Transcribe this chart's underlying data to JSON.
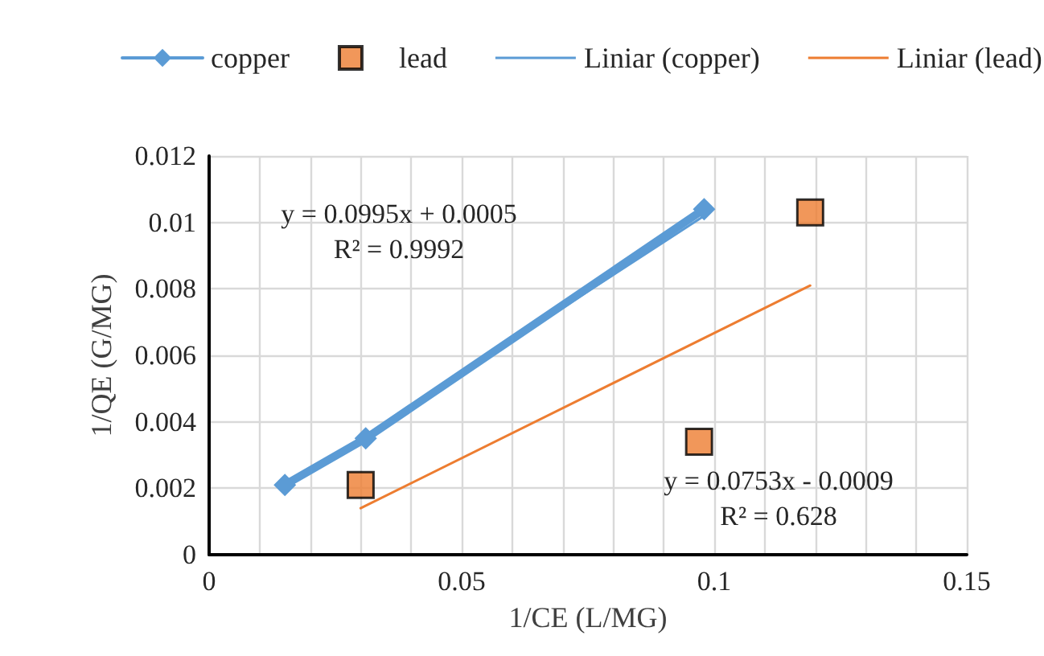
{
  "chart_data": {
    "type": "scatter",
    "xlabel": "1/CE (L/MG)",
    "ylabel": "1/QE (G/MG)",
    "xlim": [
      0,
      0.15
    ],
    "ylim": [
      0,
      0.012
    ],
    "xticks": [
      0,
      {
        "value": 0.01,
        "label": null
      },
      {
        "value": 0.02,
        "label": null
      },
      {
        "value": 0.03,
        "label": null
      },
      {
        "value": 0.04,
        "label": null
      },
      0.05,
      {
        "value": 0.06,
        "label": null
      },
      {
        "value": 0.07,
        "label": null
      },
      {
        "value": 0.08,
        "label": null
      },
      {
        "value": 0.09,
        "label": null
      },
      0.1,
      {
        "value": 0.11,
        "label": null
      },
      {
        "value": 0.12,
        "label": null
      },
      {
        "value": 0.13,
        "label": null
      },
      {
        "value": 0.14,
        "label": null
      },
      0.15
    ],
    "yticks": [
      0,
      0.002,
      0.004,
      0.006,
      0.008,
      0.01,
      0.012
    ],
    "grid": true,
    "legend": "top",
    "series": [
      {
        "name": "copper",
        "type": "line",
        "marker": "diamond",
        "line_style": "solid",
        "color": "#5b9bd5",
        "x": [
          0.015,
          0.031,
          0.098
        ],
        "values": [
          0.0021,
          0.0035,
          0.0104
        ]
      },
      {
        "name": "lead",
        "marker": "square",
        "color": "#ed7d31",
        "x": [
          0.03,
          0.097,
          0.119
        ],
        "values": [
          0.0021,
          0.0034,
          0.0103
        ]
      },
      {
        "name": "Liniar (copper)",
        "type": "line",
        "marker": "none",
        "line_style": "solid",
        "color": "#5b9bd5",
        "x": [
          0.015,
          0.098
        ],
        "values": [
          0.002,
          0.0102
        ]
      },
      {
        "name": "Liniar (lead)",
        "type": "line",
        "marker": "none",
        "line_style": "solid",
        "color": "#ed7d31",
        "x": [
          0.03,
          0.119
        ],
        "values": [
          0.0014,
          0.0081
        ]
      }
    ],
    "annotations": [
      "y = 0.0995x + 0.0005\nR² = 0.9992",
      "y = 0.0753x - 0.0009\nR² = 0.628"
    ]
  }
}
